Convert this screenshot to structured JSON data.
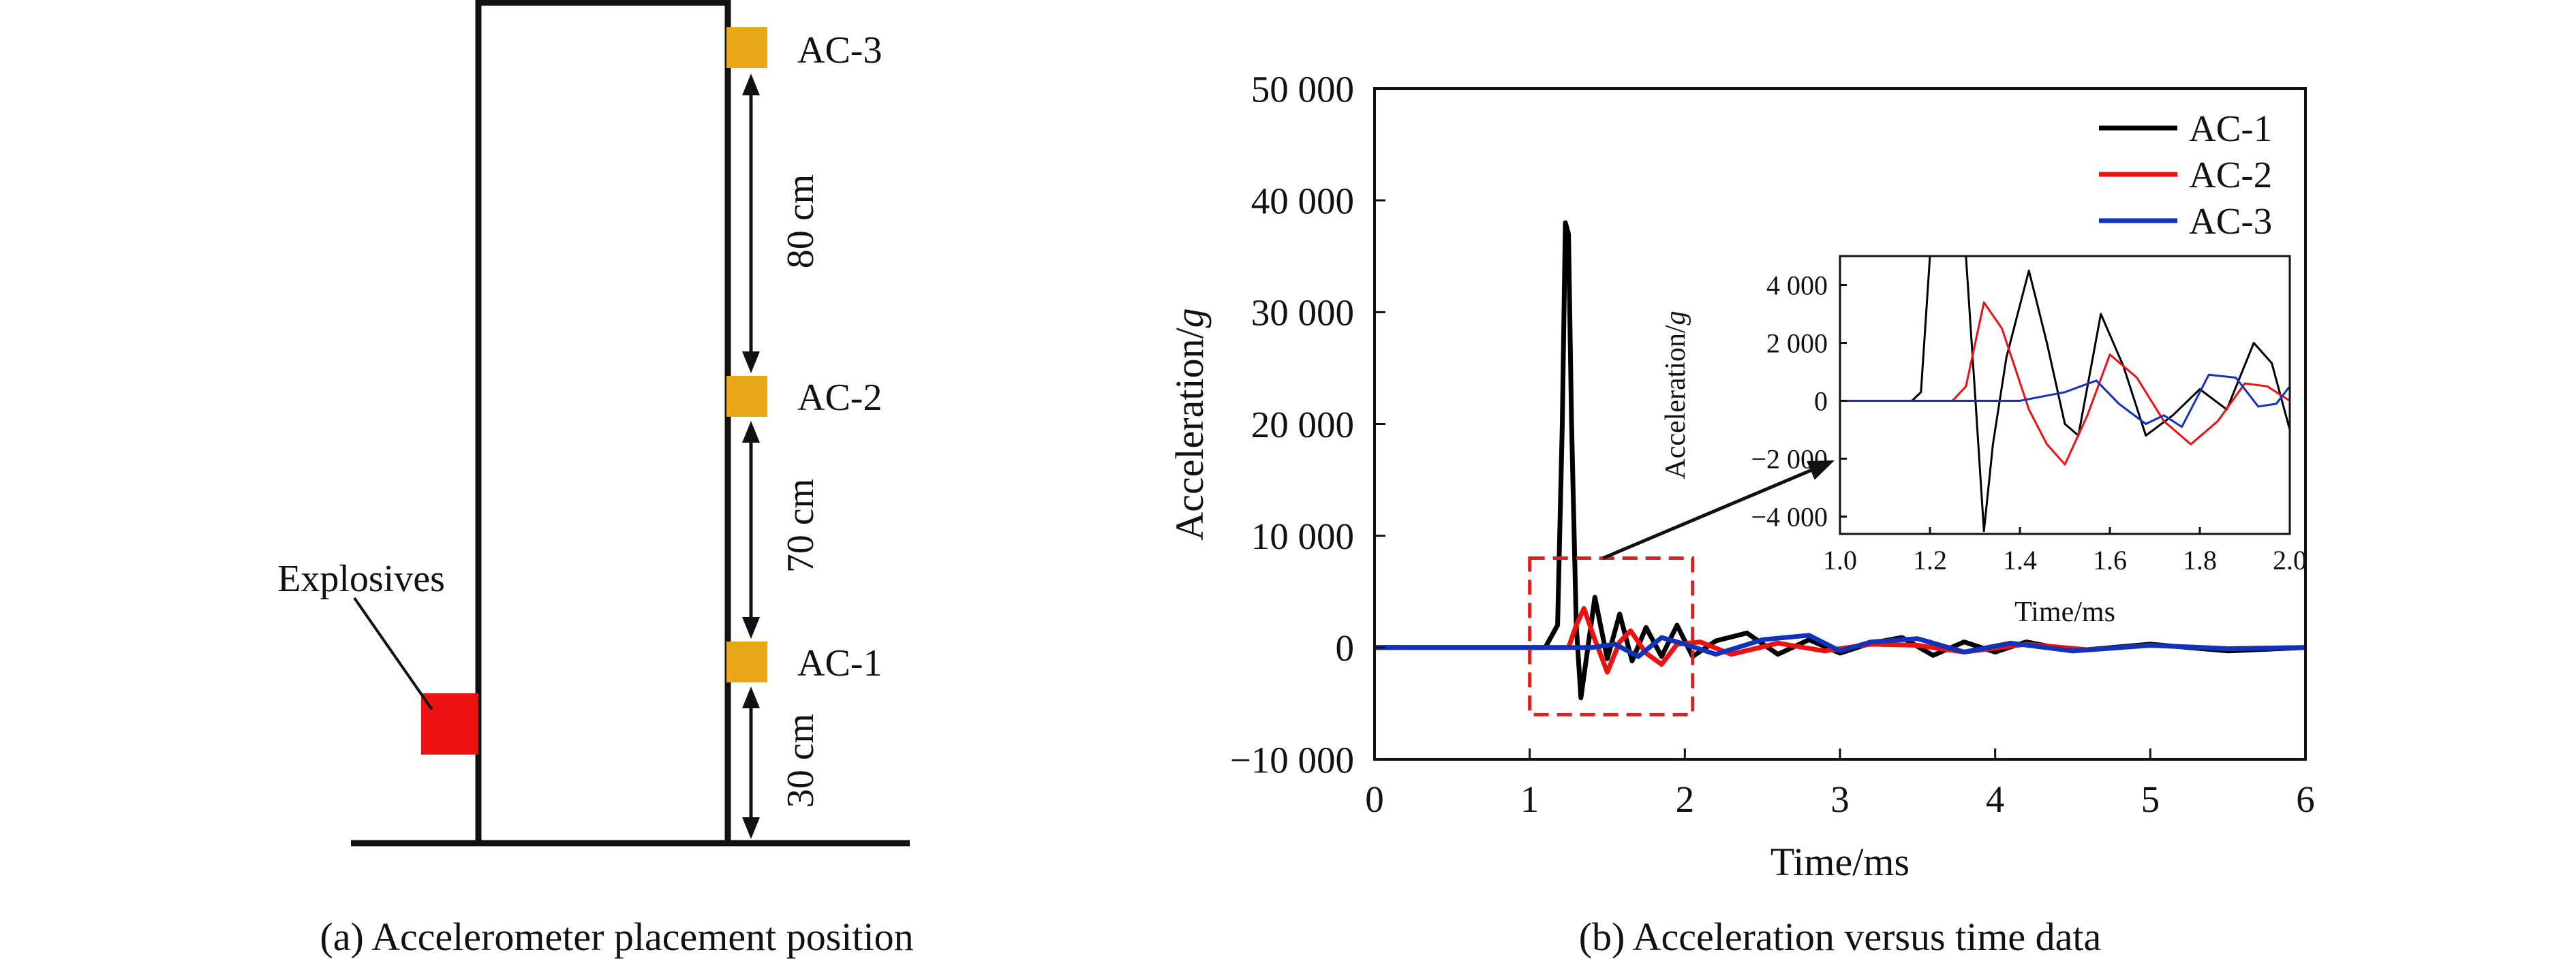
{
  "panel_a": {
    "caption": "(a) Accelerometer placement position",
    "sensors": [
      {
        "label": "AC-3",
        "distance_label": "80 cm"
      },
      {
        "label": "AC-2",
        "distance_label": "70 cm"
      },
      {
        "label": "AC-1",
        "distance_label": "30 cm"
      }
    ],
    "explosives_label": "Explosives",
    "colors": {
      "sensor": "#E8A817",
      "explosive": "#EE1111",
      "structure": "#111111"
    }
  },
  "panel_b": {
    "caption": "(b) Acceleration versus time data",
    "arrow_note": ""
  },
  "chart_data": [
    {
      "type": "line",
      "xlabel": "Time/ms",
      "ylabel": "Acceleration/g",
      "ylabel_italic_part": "g",
      "xlim": [
        0,
        6
      ],
      "ylim": [
        -10000,
        50000
      ],
      "xticks": [
        0,
        1,
        2,
        3,
        4,
        5,
        6
      ],
      "xtick_labels": [
        "0",
        "1",
        "2",
        "3",
        "4",
        "5",
        "6"
      ],
      "yticks": [
        -10000,
        0,
        10000,
        20000,
        30000,
        40000,
        50000
      ],
      "ytick_labels": [
        "−10 000",
        "0",
        "10 000",
        "20 000",
        "30 000",
        "40 000",
        "50 000"
      ],
      "legend_position": "top-right",
      "grid": false,
      "highlight_box": {
        "x": [
          1.0,
          2.05
        ],
        "y": [
          -6000,
          8000
        ],
        "color": "#E02020"
      },
      "series": [
        {
          "name": "AC-1",
          "color": "#000000",
          "x": [
            0,
            1.1,
            1.18,
            1.21,
            1.23,
            1.25,
            1.27,
            1.3,
            1.33,
            1.36,
            1.42,
            1.5,
            1.58,
            1.66,
            1.75,
            1.85,
            1.95,
            2.05,
            2.2,
            2.4,
            2.6,
            2.8,
            3.0,
            3.2,
            3.4,
            3.6,
            3.8,
            4.0,
            4.2,
            4.5,
            5.0,
            5.5,
            6.0
          ],
          "y": [
            0,
            0,
            2000,
            20000,
            38000,
            37000,
            20000,
            2000,
            -4500,
            -1500,
            4500,
            -1000,
            3000,
            -1200,
            1800,
            -800,
            2000,
            -800,
            600,
            1300,
            -600,
            700,
            -500,
            400,
            900,
            -700,
            500,
            -400,
            500,
            -300,
            300,
            -300,
            0
          ]
        },
        {
          "name": "AC-2",
          "color": "#EE1111",
          "x": [
            0,
            1.25,
            1.3,
            1.35,
            1.42,
            1.5,
            1.58,
            1.65,
            1.75,
            1.85,
            1.95,
            2.1,
            2.3,
            2.6,
            2.9,
            3.2,
            3.5,
            3.8,
            4.2,
            4.6,
            5.0,
            5.5,
            6.0
          ],
          "y": [
            0,
            0,
            2000,
            3500,
            700,
            -2200,
            500,
            1500,
            -500,
            -1500,
            300,
            500,
            -600,
            400,
            -300,
            300,
            200,
            -400,
            300,
            -200,
            200,
            -100,
            0
          ]
        },
        {
          "name": "AC-3",
          "color": "#1133BB",
          "x": [
            0,
            1.4,
            1.55,
            1.7,
            1.85,
            2.0,
            2.2,
            2.5,
            2.8,
            3.0,
            3.2,
            3.5,
            3.8,
            4.1,
            4.5,
            5.0,
            5.5,
            6.0
          ],
          "y": [
            0,
            0,
            300,
            -800,
            900,
            300,
            -600,
            700,
            1100,
            -300,
            500,
            800,
            -400,
            400,
            -300,
            200,
            -100,
            0
          ]
        }
      ]
    },
    {
      "type": "line",
      "xlabel": "Time/ms",
      "ylabel": "Acceleration/g",
      "ylabel_italic_part": "g",
      "xlim": [
        1.0,
        2.0
      ],
      "ylim": [
        -4600,
        5000
      ],
      "xticks": [
        1.0,
        1.2,
        1.4,
        1.6,
        1.8,
        2.0
      ],
      "xtick_labels": [
        "1.0",
        "1.2",
        "1.4",
        "1.6",
        "1.8",
        "2.0"
      ],
      "yticks": [
        -4000,
        -2000,
        0,
        2000,
        4000
      ],
      "ytick_labels": [
        "−4 000",
        "−2 000",
        "0",
        "2 000",
        "4 000"
      ],
      "grid": false,
      "series": [
        {
          "name": "AC-1",
          "color": "#000000",
          "x": [
            1.0,
            1.16,
            1.18,
            1.2,
            1.22,
            1.28,
            1.3,
            1.32,
            1.34,
            1.37,
            1.42,
            1.46,
            1.5,
            1.53,
            1.58,
            1.63,
            1.68,
            1.74,
            1.8,
            1.86,
            1.92,
            1.96,
            2.0
          ],
          "y": [
            0,
            0,
            300,
            5000,
            5000,
            5000,
            300,
            -4500,
            -1500,
            1500,
            4500,
            2000,
            -800,
            -1200,
            3000,
            1200,
            -1200,
            -500,
            400,
            -300,
            2000,
            1300,
            -1000
          ]
        },
        {
          "name": "AC-2",
          "color": "#EE1111",
          "x": [
            1.0,
            1.25,
            1.28,
            1.32,
            1.36,
            1.42,
            1.46,
            1.5,
            1.55,
            1.6,
            1.66,
            1.72,
            1.78,
            1.84,
            1.9,
            1.95,
            2.0
          ],
          "y": [
            0,
            0,
            500,
            3400,
            2500,
            -300,
            -1500,
            -2200,
            -500,
            1600,
            800,
            -700,
            -1500,
            -700,
            600,
            500,
            0
          ]
        },
        {
          "name": "AC-3",
          "color": "#1133BB",
          "x": [
            1.0,
            1.4,
            1.5,
            1.57,
            1.62,
            1.68,
            1.72,
            1.76,
            1.82,
            1.88,
            1.93,
            1.97,
            2.0
          ],
          "y": [
            0,
            0,
            300,
            700,
            -100,
            -800,
            -500,
            -900,
            900,
            800,
            -200,
            -100,
            500
          ]
        }
      ]
    }
  ]
}
